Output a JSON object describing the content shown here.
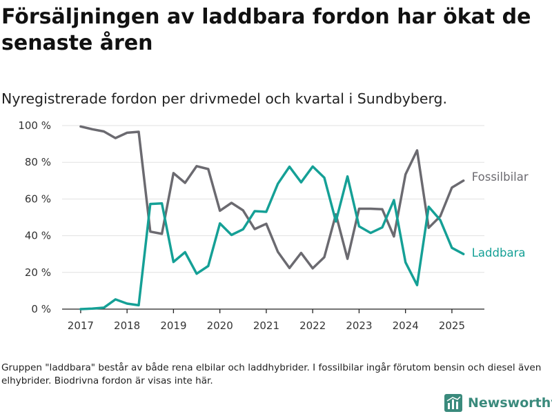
{
  "title": "Försäljningen av laddbara fordon har ökat de senaste åren",
  "subtitle": "Nyregistrerade fordon per drivmedel och kvartal i Sundbyberg.",
  "footnote": "Gruppen \"laddbara\" består av både rena elbilar och laddhybrider. I fossilbilar ingår förutom bensin och diesel även elhybrider. Biodrivna fordon är visas inte här.",
  "logo": {
    "text": "Newsworthy",
    "icon": "bar-chart-logo-icon",
    "color": "#3a8a7c"
  },
  "chart_data": {
    "type": "line",
    "title": "",
    "xlabel": "",
    "ylabel": "",
    "x": [
      2017.0,
      2017.25,
      2017.5,
      2017.75,
      2018.0,
      2018.25,
      2018.5,
      2018.75,
      2019.0,
      2019.25,
      2019.5,
      2019.75,
      2020.0,
      2020.25,
      2020.5,
      2020.75,
      2021.0,
      2021.25,
      2021.5,
      2021.75,
      2022.0,
      2022.25,
      2022.5,
      2022.75,
      2023.0,
      2023.25,
      2023.5,
      2023.75,
      2024.0,
      2024.25,
      2024.5,
      2024.75,
      2025.0,
      2025.25
    ],
    "xlim": [
      2016.6,
      2025.7
    ],
    "ylim": [
      0,
      100
    ],
    "x_ticks": [
      2017,
      2018,
      2019,
      2020,
      2021,
      2022,
      2023,
      2024,
      2025
    ],
    "x_tick_labels": [
      "2017",
      "2018",
      "2019",
      "2020",
      "2021",
      "2022",
      "2023",
      "2024",
      "2025"
    ],
    "y_ticks": [
      0,
      20,
      40,
      60,
      80,
      100
    ],
    "y_tick_labels": [
      "0 %",
      "20 %",
      "40 %",
      "60 %",
      "80 %",
      "100 %"
    ],
    "grid": true,
    "legend": "direct labels at line ends",
    "series": [
      {
        "name": "Fossilbilar",
        "color": "#6b6a70",
        "values": [
          99.5,
          98,
          96.8,
          93.2,
          96.1,
          96.6,
          42.2,
          41.0,
          74.1,
          68.8,
          77.9,
          76.3,
          53.6,
          57.9,
          53.8,
          43.6,
          46.5,
          31.2,
          22.4,
          30.6,
          22.2,
          28.3,
          51.6,
          27.4,
          54.7,
          54.7,
          54.4,
          39.6,
          73.4,
          86.5,
          44.3,
          50.6,
          66.2,
          70.0
        ]
      },
      {
        "name": "Laddbara",
        "color": "#15a096",
        "values": [
          0,
          0.3,
          0.8,
          5.3,
          3.0,
          2.1,
          57.3,
          57.6,
          25.7,
          31.0,
          19.3,
          23.5,
          46.7,
          40.4,
          43.5,
          53.4,
          53.0,
          68.3,
          77.6,
          69.1,
          77.7,
          71.6,
          47.8,
          72.3,
          45.1,
          41.5,
          44.5,
          59.4,
          25.5,
          13.1,
          55.8,
          48.5,
          33.4,
          30.0
        ]
      }
    ]
  }
}
